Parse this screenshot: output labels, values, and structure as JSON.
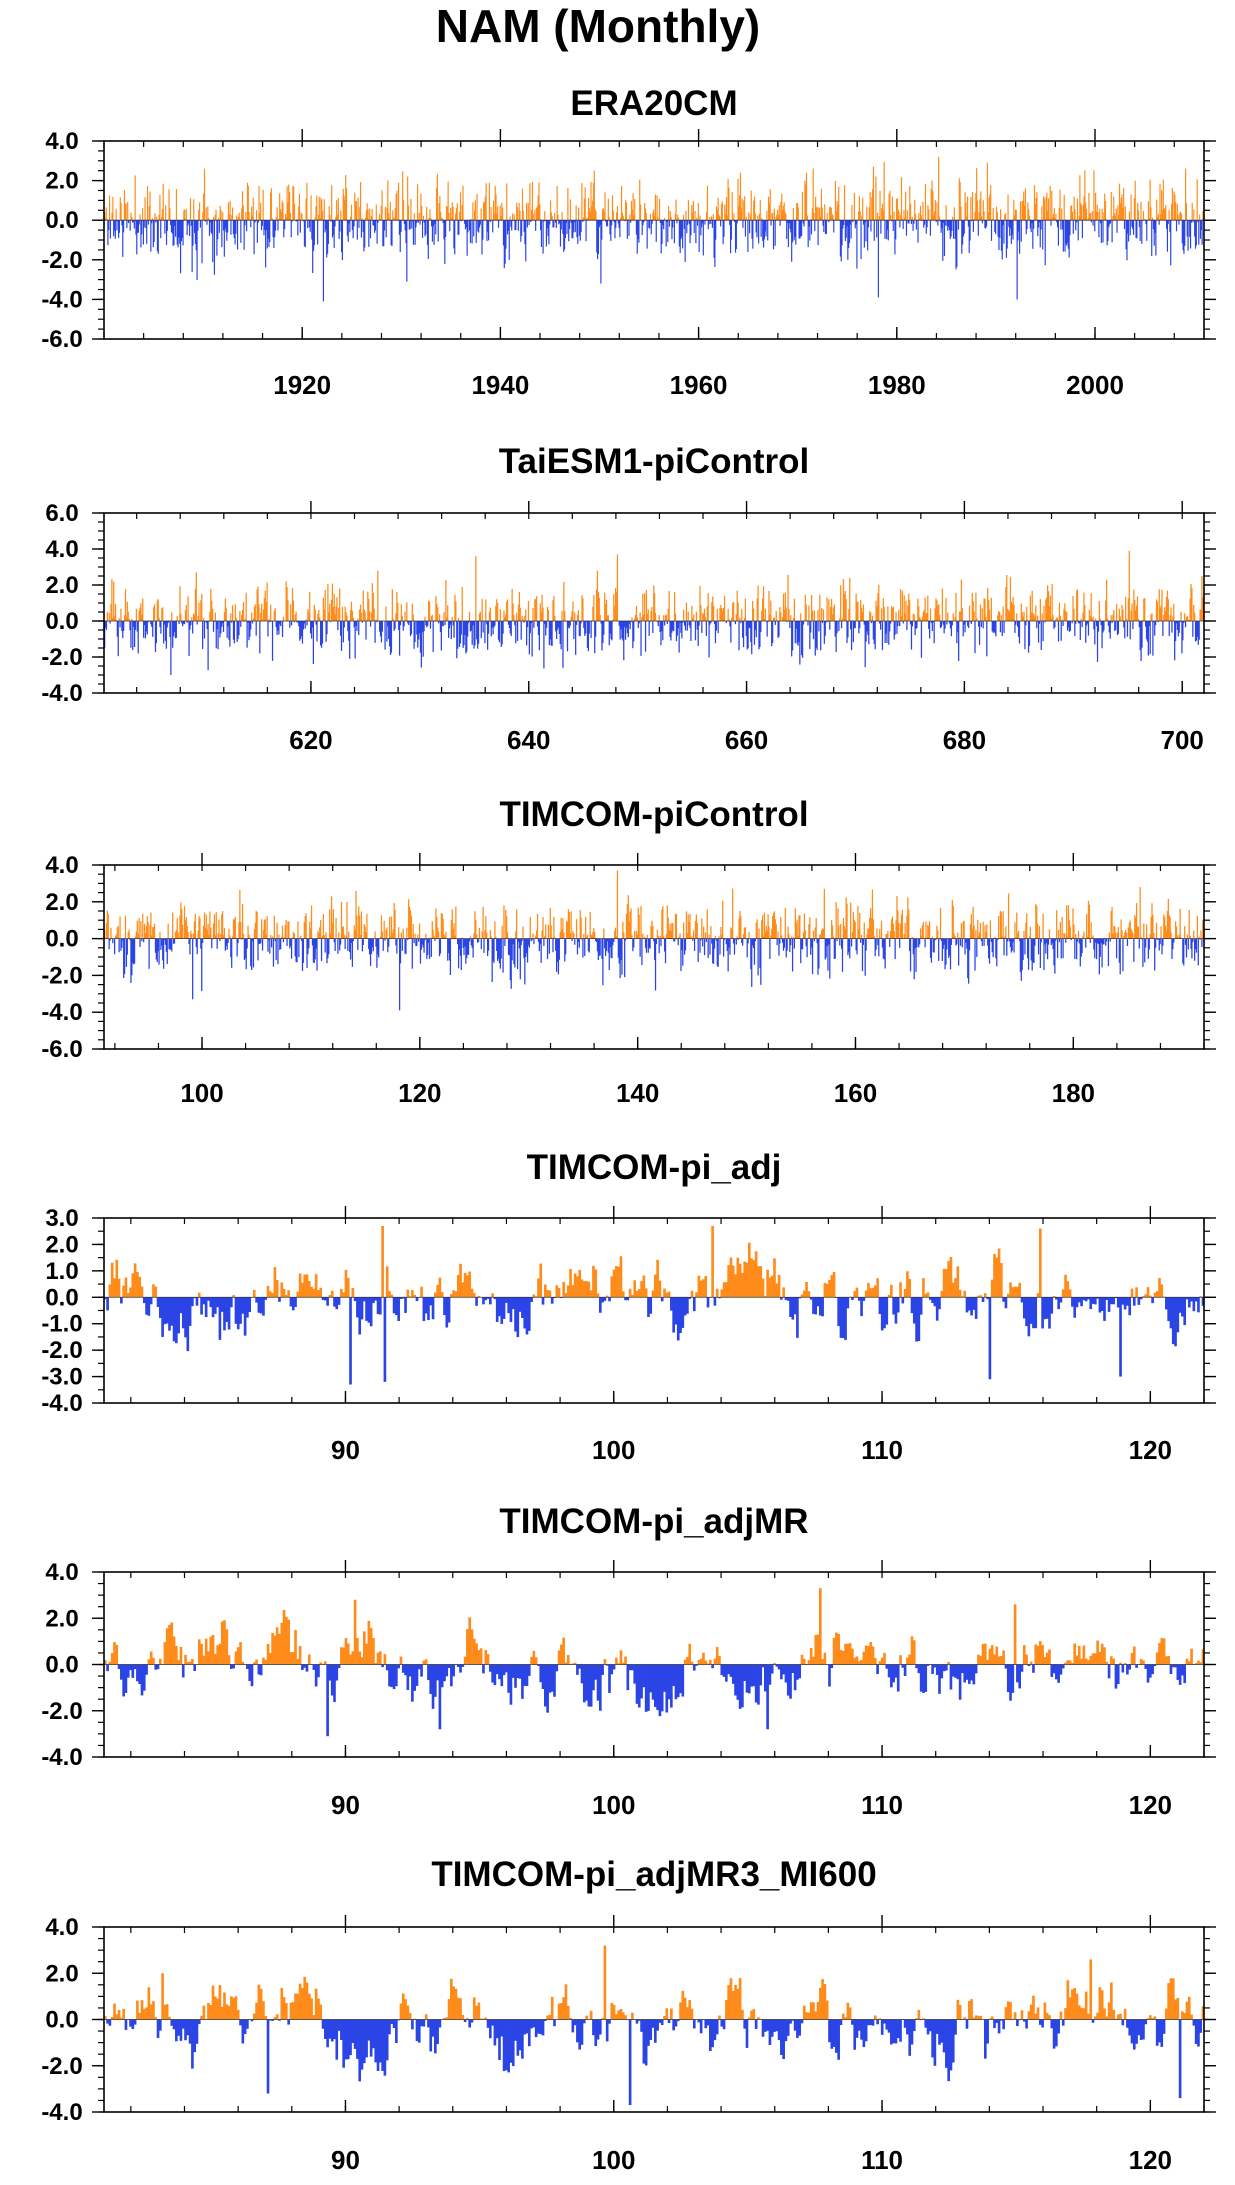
{
  "figure": {
    "title": "NAM (Monthly)"
  },
  "colors": {
    "positive": "#ff8c1a",
    "negative": "#2a44e6",
    "frame": "#000000"
  },
  "chart_data": [
    {
      "type": "bar",
      "title": "ERA20CM",
      "x_range": [
        1900,
        2011
      ],
      "xticks": [
        1920,
        1940,
        1960,
        1980,
        2000
      ],
      "ylim": [
        -6.0,
        4.0
      ],
      "yticks": [
        4.0,
        2.0,
        0.0,
        -2.0,
        -4.0,
        -6.0
      ],
      "ylabels": [
        "4.0",
        "2.0",
        "0.0",
        "-2.0",
        "-4.0",
        "-6.0"
      ],
      "yminor": 0.5,
      "months": 1332,
      "amplitude": 1.0,
      "persistence": 0.25,
      "seed": 11,
      "peaks": [
        {
          "x": 1922.1,
          "y": -4.1
        },
        {
          "x": 1930.5,
          "y": -3.1
        },
        {
          "x": 1984.2,
          "y": 3.2
        },
        {
          "x": 1978.1,
          "y": -3.9
        },
        {
          "x": 1992.1,
          "y": -4.0
        },
        {
          "x": 2009.1,
          "y": 2.6
        },
        {
          "x": 1989.1,
          "y": 2.9
        },
        {
          "x": 1950.1,
          "y": -3.2
        },
        {
          "x": 1910.1,
          "y": 2.6
        }
      ]
    },
    {
      "type": "bar",
      "title": "TaiESM1-piControl",
      "x_range": [
        601,
        702
      ],
      "xticks": [
        620,
        640,
        660,
        680,
        700
      ],
      "ylim": [
        -4.0,
        6.0
      ],
      "yticks": [
        6.0,
        4.0,
        2.0,
        0.0,
        -2.0,
        -4.0
      ],
      "ylabels": [
        "6.0",
        "4.0",
        "2.0",
        "0.0",
        "-2.0",
        "-4.0"
      ],
      "yminor": 0.5,
      "months": 1212,
      "amplitude": 1.0,
      "persistence": 0.25,
      "seed": 23,
      "peaks": [
        {
          "x": 635.1,
          "y": 3.6
        },
        {
          "x": 648.1,
          "y": 3.7
        },
        {
          "x": 695.1,
          "y": 3.9
        },
        {
          "x": 607.1,
          "y": -3.0
        },
        {
          "x": 643.1,
          "y": -2.6
        },
        {
          "x": 626.1,
          "y": 2.8
        }
      ]
    },
    {
      "type": "bar",
      "title": "TIMCOM-piControl",
      "x_range": [
        91,
        192
      ],
      "xticks": [
        100,
        120,
        140,
        160,
        180
      ],
      "ylim": [
        -6.0,
        4.0
      ],
      "yticks": [
        4.0,
        2.0,
        0.0,
        -2.0,
        -4.0,
        -6.0
      ],
      "ylabels": [
        "4.0",
        "2.0",
        "0.0",
        "-2.0",
        "-4.0",
        "-6.0"
      ],
      "yminor": 0.5,
      "months": 1212,
      "amplitude": 1.0,
      "persistence": 0.3,
      "seed": 37,
      "peaks": [
        {
          "x": 138.1,
          "y": 3.7
        },
        {
          "x": 99.1,
          "y": -3.3
        },
        {
          "x": 118.1,
          "y": -3.9
        },
        {
          "x": 157.1,
          "y": 2.7
        },
        {
          "x": 186.1,
          "y": 2.8
        },
        {
          "x": 114.1,
          "y": 2.6
        }
      ]
    },
    {
      "type": "bar",
      "title": "TIMCOM-pi_adj",
      "x_range": [
        81,
        122
      ],
      "xticks": [
        90,
        100,
        110,
        120
      ],
      "ylim": [
        -4.0,
        3.0
      ],
      "yticks": [
        3.0,
        2.0,
        1.0,
        0.0,
        -1.0,
        -2.0,
        -3.0,
        -4.0
      ],
      "ylabels": [
        "3.0",
        "2.0",
        "1.0",
        "0.0",
        "-1.0",
        "-2.0",
        "-3.0",
        "-4.0"
      ],
      "yminor": 0.5,
      "months": 480,
      "amplitude": 0.8,
      "persistence": 0.8,
      "seed": 53,
      "peaks": [
        {
          "x": 89.95,
          "y": -3.3
        },
        {
          "x": 91.05,
          "y": 2.7
        },
        {
          "x": 91.15,
          "y": -3.2
        },
        {
          "x": 103.1,
          "y": 2.7
        },
        {
          "x": 115.0,
          "y": 2.6
        },
        {
          "x": 113.2,
          "y": -3.1
        },
        {
          "x": 117.9,
          "y": -3.0
        }
      ]
    },
    {
      "type": "bar",
      "title": "TIMCOM-pi_adjMR",
      "x_range": [
        81,
        122
      ],
      "xticks": [
        90,
        100,
        110,
        120
      ],
      "ylim": [
        -4.0,
        4.0
      ],
      "yticks": [
        4.0,
        2.0,
        0.0,
        -2.0,
        -4.0
      ],
      "ylabels": [
        "4.0",
        "2.0",
        "0.0",
        "-2.0",
        "-4.0"
      ],
      "yminor": 0.5,
      "months": 480,
      "amplitude": 0.9,
      "persistence": 0.8,
      "seed": 71,
      "peaks": [
        {
          "x": 107.0,
          "y": 3.3
        },
        {
          "x": 89.1,
          "y": -3.1
        },
        {
          "x": 93.2,
          "y": -2.8
        },
        {
          "x": 105.1,
          "y": -2.8
        },
        {
          "x": 114.1,
          "y": 2.6
        },
        {
          "x": 90.05,
          "y": 2.8
        }
      ]
    },
    {
      "type": "bar",
      "title": "TIMCOM-pi_adjMR3_MI600",
      "x_range": [
        81,
        122
      ],
      "xticks": [
        90,
        100,
        110,
        120
      ],
      "ylim": [
        -4.0,
        4.0
      ],
      "yticks": [
        4.0,
        2.0,
        0.0,
        -2.0,
        -4.0
      ],
      "ylabels": [
        "4.0",
        "2.0",
        "0.0",
        "-2.0",
        "-4.0"
      ],
      "yminor": 0.5,
      "months": 480,
      "amplitude": 0.9,
      "persistence": 0.8,
      "seed": 97,
      "peaks": [
        {
          "x": 99.15,
          "y": 3.2
        },
        {
          "x": 100.05,
          "y": -3.7
        },
        {
          "x": 120.1,
          "y": -3.4
        },
        {
          "x": 86.9,
          "y": -3.2
        },
        {
          "x": 116.8,
          "y": 2.6
        },
        {
          "x": 83.1,
          "y": 2.0
        }
      ]
    }
  ]
}
